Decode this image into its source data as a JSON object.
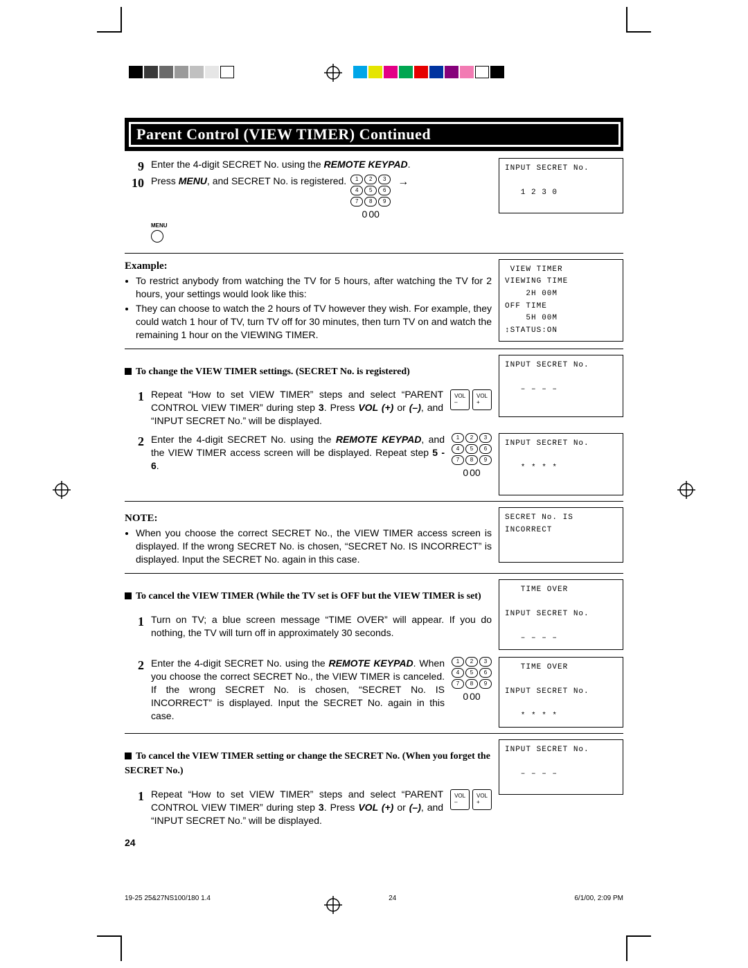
{
  "printer": {
    "swatches1": [
      "#000000",
      "#3a3a3a",
      "#6a6a6a",
      "#9a9a9a",
      "#c0c0c0",
      "#e6e6e6",
      "#ffffff"
    ],
    "swatches2": [
      "#00a6e8",
      "#e5e500",
      "#e30086",
      "#00a651",
      "#e60000",
      "#0033a0",
      "#86007b",
      "#f27bb3",
      "#ffffff",
      "#000000"
    ]
  },
  "title": "Parent Control (VIEW TIMER) Continued",
  "step9": {
    "num": "9",
    "text_a": "Enter the 4-digit SECRET No. using the ",
    "text_b": "REMOTE KEYPAD",
    "text_c": "."
  },
  "step10": {
    "num": "10",
    "text_a": "Press ",
    "text_b": "MENU",
    "text_c": ", and SECRET No. is registered."
  },
  "menu_label": "MENU",
  "osd1": "INPUT SECRET No.\n\n   1 2 3 0",
  "example_label": "Example:",
  "example_bullet1": "To restrict anybody from watching the TV for 5 hours, after watching the TV for 2 hours, your settings would look like this:",
  "example_bullet2": "They can choose to watch the 2 hours of TV however they wish. For example, they could watch 1 hour of TV, turn TV off for 30 minutes, then turn TV on and watch the remaining 1 hour on the VIEWING TIMER.",
  "osd2": " VIEW TIMER\nVIEWING TIME\n    2H 00M\nOFF TIME\n    5H 00M\n↕STATUS:ON",
  "sec_change_head": "To change the VIEW TIMER settings. (SECRET No. is registered)",
  "sec_change_1": {
    "num": "1",
    "a": "Repeat “How to set VIEW TIMER” steps and select “PARENT CONTROL VIEW TIMER” during step ",
    "b": "3",
    "c": ". Press ",
    "d": "VOL (+)",
    "e": " or ",
    "f": "(–)",
    "g": ", and “INPUT SECRET No.” will be displayed."
  },
  "osd3": "INPUT SECRET No.\n\n   – – – –",
  "sec_change_2": {
    "num": "2",
    "a": "Enter the 4-digit SECRET No. using the ",
    "b": "REMOTE KEYPAD",
    "c": ", and the VIEW TIMER access screen will be displayed. Repeat step ",
    "d": "5 - 6",
    "e": "."
  },
  "osd4": "INPUT SECRET No.\n\n   * * * *",
  "note_label": "NOTE:",
  "note_bullet": "When you choose the correct SECRET No., the VIEW TIMER access screen is displayed. If the wrong SECRET No. is chosen, “SECRET No. IS INCORRECT” is displayed. Input the SECRET No. again in this case.",
  "osd5": "SECRET No. IS\nINCORRECT",
  "cancel_head": "To cancel the VIEW TIMER (While the TV set is OFF but the VIEW TIMER is set)",
  "cancel_1": {
    "num": "1",
    "text": "Turn on TV; a blue screen message “TIME OVER” will appear. If you do nothing, the TV will turn off in approximately 30 seconds."
  },
  "osd6": "   TIME OVER\n\nINPUT SECRET No.\n\n   – – – –",
  "cancel_2": {
    "num": "2",
    "a": "Enter the 4-digit SECRET No. using the ",
    "b": "REMOTE KEYPAD",
    "c": ". When you choose the correct SECRET No., the VIEW TIMER is canceled. If the wrong SECRET No. is chosen, “SECRET No. IS INCORRECT” is displayed. Input the SECRET No. again in this case."
  },
  "osd7": "   TIME OVER\n\nINPUT SECRET No.\n\n   * * * *",
  "forget_head": "To cancel the VIEW TIMER setting or change the SECRET No. (When you forget the SECRET No.)",
  "forget_1": {
    "num": "1",
    "a": "Repeat “How to set VIEW TIMER” steps and select “PARENT CONTROL VIEW TIMER” during step ",
    "b": "3",
    "c": ". Press ",
    "d": "VOL (+)",
    "e": " or ",
    "f": "(–)",
    "g": ", and “INPUT SECRET No.” will be displayed."
  },
  "osd8": "INPUT SECRET No.\n\n   – – – –",
  "vol_minus": "VOL\n–",
  "vol_plus": "VOL\n+",
  "page_number": "24",
  "footer_file": "19-25 25&27NS100/180 1.4",
  "footer_page": "24",
  "footer_date": "6/1/00, 2:09 PM"
}
